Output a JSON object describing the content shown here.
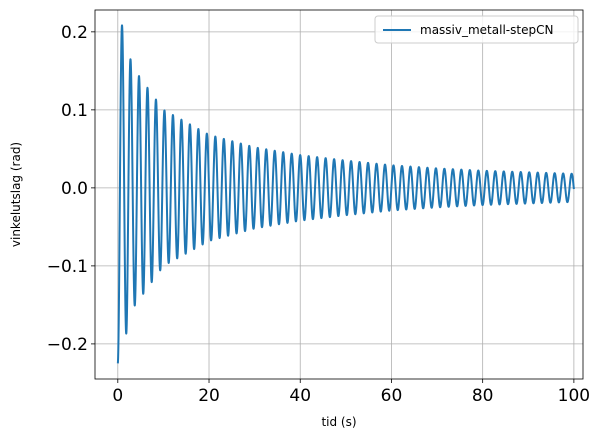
{
  "chart_data": {
    "type": "line",
    "xlabel": "tid (s)",
    "ylabel": "vinkelutslag (rad)",
    "xlim": [
      -5,
      102
    ],
    "ylim": [
      -0.245,
      0.228
    ],
    "xticks": [
      {
        "value": 0,
        "label": "0"
      },
      {
        "value": 20,
        "label": "20"
      },
      {
        "value": 40,
        "label": "40"
      },
      {
        "value": 60,
        "label": "60"
      },
      {
        "value": 80,
        "label": "80"
      },
      {
        "value": 100,
        "label": "100"
      }
    ],
    "yticks": [
      {
        "value": -0.2,
        "label": "−0.2"
      },
      {
        "value": -0.1,
        "label": "−0.1"
      },
      {
        "value": 0.0,
        "label": "0.0"
      },
      {
        "value": 0.1,
        "label": "0.1"
      },
      {
        "value": 0.2,
        "label": "0.2"
      }
    ],
    "grid": true,
    "legend_position": "top-right",
    "series": [
      {
        "name": "massiv_metall-stepCN",
        "color": "#1f77b4",
        "x_range": [
          0,
          100
        ],
        "period": 1.86,
        "amplitude_envelope": [
          {
            "t": 0,
            "a": 0.225
          },
          {
            "t": 1.0,
            "a": 0.207
          },
          {
            "t": 3.2,
            "a": 0.155
          },
          {
            "t": 10,
            "a": 0.1
          },
          {
            "t": 20,
            "a": 0.068
          },
          {
            "t": 30,
            "a": 0.052
          },
          {
            "t": 40,
            "a": 0.042
          },
          {
            "t": 50,
            "a": 0.035
          },
          {
            "t": 60,
            "a": 0.029
          },
          {
            "t": 70,
            "a": 0.025
          },
          {
            "t": 80,
            "a": 0.022
          },
          {
            "t": 90,
            "a": 0.02
          },
          {
            "t": 100,
            "a": 0.018
          }
        ]
      }
    ]
  }
}
